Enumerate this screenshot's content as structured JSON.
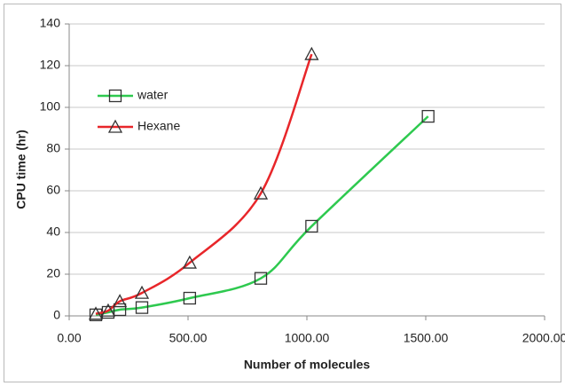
{
  "chart_data": {
    "type": "line",
    "xlabel": "Number of molecules",
    "ylabel": "CPU time (hr)",
    "xlim": [
      0,
      2000
    ],
    "ylim": [
      0,
      140
    ],
    "xticks": [
      {
        "value": 0,
        "label": "0.00"
      },
      {
        "value": 500,
        "label": "500.00"
      },
      {
        "value": 1000,
        "label": "1000.00"
      },
      {
        "value": 1500,
        "label": "1500.00"
      },
      {
        "value": 2000,
        "label": "2000.00"
      }
    ],
    "yticks": [
      0,
      20,
      40,
      60,
      80,
      100,
      120,
      140
    ],
    "grid": true,
    "legend": "upper left",
    "series": [
      {
        "name": "water",
        "color": "#2ec94f",
        "marker": "square",
        "x": [
          112,
          164,
          213,
          306,
          507,
          806,
          1020,
          1510
        ],
        "values": [
          0.5,
          1.7,
          3,
          4,
          8.5,
          18,
          43,
          95.7
        ]
      },
      {
        "name": "Hexane",
        "color": "#e8262a",
        "marker": "triangle",
        "x": [
          112,
          164,
          213,
          306,
          507,
          806,
          1020
        ],
        "values": [
          1,
          2.5,
          7,
          11,
          25.5,
          58.7,
          125.5
        ]
      }
    ]
  }
}
